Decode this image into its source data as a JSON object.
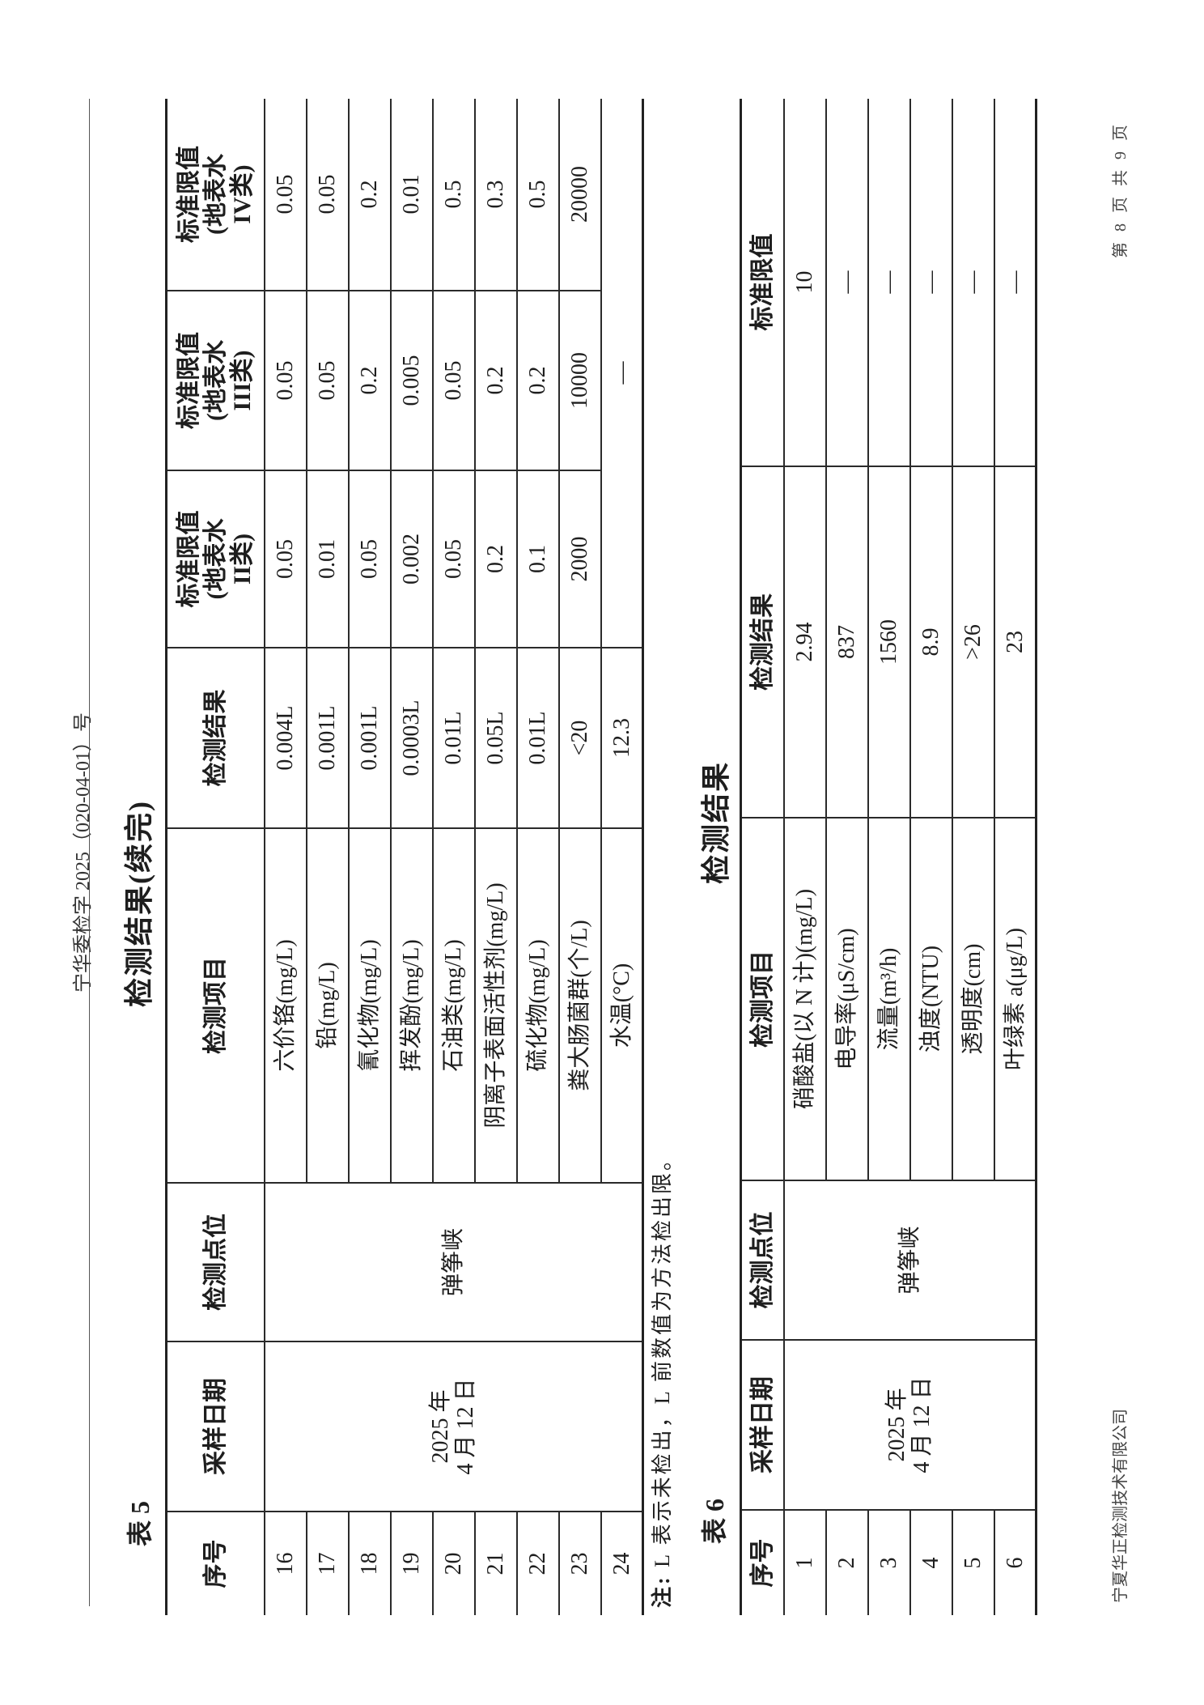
{
  "header": {
    "doc_number": "宁华委检字 2025（020-04-01）号"
  },
  "table5": {
    "label": "表 5",
    "title": "检测结果(续完)",
    "columns": {
      "no": "序号",
      "date": "采样日期",
      "site": "检测点位",
      "item": "检测项目",
      "result": "检测结果",
      "ii": [
        "标准限值",
        "(地表水",
        "II类)"
      ],
      "iii": [
        "标准限值",
        "(地表水",
        "III类)"
      ],
      "iv": [
        "标准限值",
        "(地表水",
        "IV类)"
      ]
    },
    "date_lines": [
      "2025 年",
      "4 月 12 日"
    ],
    "site": "弹筝峡",
    "rows": [
      {
        "no": "16",
        "item": "六价铬(mg/L)",
        "result": "0.004L",
        "ii": "0.05",
        "iii": "0.05",
        "iv": "0.05"
      },
      {
        "no": "17",
        "item": "铅(mg/L)",
        "result": "0.001L",
        "ii": "0.01",
        "iii": "0.05",
        "iv": "0.05"
      },
      {
        "no": "18",
        "item": "氰化物(mg/L)",
        "result": "0.001L",
        "ii": "0.05",
        "iii": "0.2",
        "iv": "0.2"
      },
      {
        "no": "19",
        "item": "挥发酚(mg/L)",
        "result": "0.0003L",
        "ii": "0.002",
        "iii": "0.005",
        "iv": "0.01"
      },
      {
        "no": "20",
        "item": "石油类(mg/L)",
        "result": "0.01L",
        "ii": "0.05",
        "iii": "0.05",
        "iv": "0.5"
      },
      {
        "no": "21",
        "item": "阴离子表面活性剂(mg/L)",
        "result": "0.05L",
        "ii": "0.2",
        "iii": "0.2",
        "iv": "0.3"
      },
      {
        "no": "22",
        "item": "硫化物(mg/L)",
        "result": "0.01L",
        "ii": "0.1",
        "iii": "0.2",
        "iv": "0.5"
      },
      {
        "no": "23",
        "item": "粪大肠菌群(个/L)",
        "result": "<20",
        "ii": "2000",
        "iii": "10000",
        "iv": "20000"
      },
      {
        "no": "24",
        "item": "水温(°C)",
        "result": "12.3",
        "limit_merged": "—"
      }
    ],
    "note_prefix": "注:",
    "note": " L 表示未检出，L 前数值为方法检出限。"
  },
  "table6": {
    "label": "表 6",
    "title": "检测结果",
    "columns": {
      "no": "序号",
      "date": "采样日期",
      "site": "检测点位",
      "item": "检测项目",
      "result": "检测结果",
      "limit": "标准限值"
    },
    "date_lines": [
      "2025 年",
      "4 月 12 日"
    ],
    "site": "弹筝峡",
    "rows": [
      {
        "no": "1",
        "item": "硝酸盐(以 N 计)(mg/L)",
        "result": "2.94",
        "limit": "10"
      },
      {
        "no": "2",
        "item": "电导率(μS/cm)",
        "result": "837",
        "limit": "—"
      },
      {
        "no": "3",
        "item": "流量(m³/h)",
        "result": "1560",
        "limit": "—"
      },
      {
        "no": "4",
        "item": "浊度(NTU)",
        "result": "8.9",
        "limit": "—"
      },
      {
        "no": "5",
        "item": "透明度(cm)",
        "result": ">26",
        "limit": "—"
      },
      {
        "no": "6",
        "item": "叶绿素 a(μg/L)",
        "result": "23",
        "limit": "—"
      }
    ]
  },
  "footer": {
    "company": "宁夏华正检测技术有限公司",
    "page": "第 8 页 共 9 页"
  }
}
